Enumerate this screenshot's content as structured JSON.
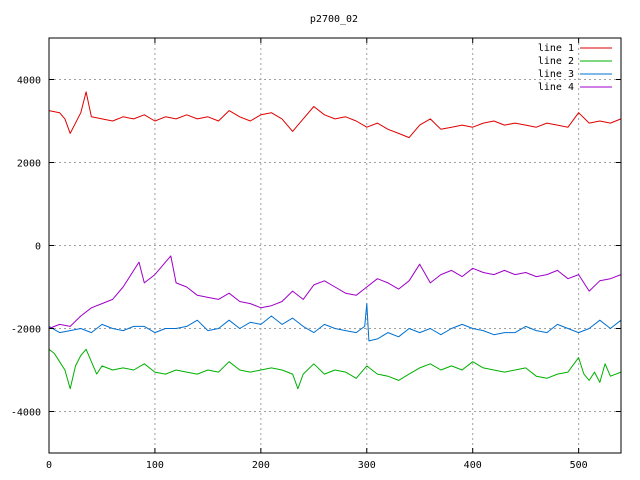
{
  "chart_data": {
    "type": "line",
    "title": "p2700_02",
    "xlabel": "",
    "ylabel": "",
    "xlim": [
      0,
      540
    ],
    "ylim": [
      -5000,
      5000
    ],
    "x_ticks": [
      0,
      100,
      200,
      300,
      400,
      500
    ],
    "y_ticks": [
      -4000,
      -2000,
      0,
      2000,
      4000
    ],
    "grid": true,
    "legend_position": "top-right",
    "series": [
      {
        "name": "line 1",
        "color": "#e00000",
        "x": [
          0,
          10,
          15,
          20,
          30,
          35,
          40,
          50,
          60,
          70,
          80,
          90,
          100,
          110,
          120,
          130,
          140,
          150,
          160,
          170,
          180,
          190,
          200,
          210,
          220,
          230,
          240,
          250,
          260,
          270,
          280,
          290,
          300,
          310,
          320,
          330,
          340,
          350,
          360,
          370,
          380,
          390,
          400,
          410,
          420,
          430,
          440,
          450,
          460,
          470,
          480,
          490,
          500,
          510,
          520,
          530,
          540
        ],
        "y": [
          3250,
          3200,
          3050,
          2700,
          3200,
          3700,
          3100,
          3050,
          3000,
          3100,
          3050,
          3150,
          3000,
          3100,
          3050,
          3150,
          3050,
          3100,
          3000,
          3250,
          3100,
          3000,
          3150,
          3200,
          3050,
          2750,
          3050,
          3350,
          3150,
          3050,
          3100,
          3000,
          2850,
          2950,
          2800,
          2700,
          2600,
          2900,
          3050,
          2800,
          2850,
          2900,
          2850,
          2950,
          3000,
          2900,
          2950,
          2900,
          2850,
          2950,
          2900,
          2850,
          3200,
          2950,
          3000,
          2950,
          3050
        ]
      },
      {
        "name": "line 2",
        "color": "#00b000",
        "x": [
          0,
          5,
          10,
          15,
          20,
          25,
          30,
          35,
          40,
          45,
          50,
          60,
          70,
          80,
          90,
          100,
          110,
          120,
          130,
          140,
          150,
          160,
          170,
          180,
          190,
          200,
          210,
          220,
          230,
          235,
          240,
          250,
          260,
          270,
          280,
          290,
          300,
          310,
          320,
          330,
          340,
          350,
          360,
          370,
          380,
          390,
          400,
          410,
          420,
          430,
          440,
          450,
          460,
          470,
          480,
          490,
          500,
          505,
          510,
          515,
          520,
          525,
          530,
          540
        ],
        "y": [
          -2500,
          -2600,
          -2800,
          -3000,
          -3450,
          -2900,
          -2650,
          -2500,
          -2800,
          -3100,
          -2900,
          -3000,
          -2950,
          -3000,
          -2850,
          -3050,
          -3100,
          -3000,
          -3050,
          -3100,
          -3000,
          -3050,
          -2800,
          -3000,
          -3050,
          -3000,
          -2950,
          -3000,
          -3100,
          -3450,
          -3100,
          -2850,
          -3100,
          -3000,
          -3050,
          -3200,
          -2900,
          -3100,
          -3150,
          -3250,
          -3100,
          -2950,
          -2850,
          -3000,
          -2900,
          -3000,
          -2800,
          -2950,
          -3000,
          -3050,
          -3000,
          -2950,
          -3150,
          -3200,
          -3100,
          -3050,
          -2700,
          -3100,
          -3250,
          -3050,
          -3300,
          -2850,
          -3150,
          -3050
        ]
      },
      {
        "name": "line 3",
        "color": "#0070d0",
        "x": [
          0,
          10,
          20,
          30,
          40,
          50,
          60,
          70,
          80,
          90,
          100,
          110,
          120,
          130,
          140,
          150,
          160,
          170,
          180,
          190,
          200,
          210,
          220,
          230,
          240,
          250,
          260,
          270,
          280,
          290,
          298,
          300,
          302,
          310,
          320,
          330,
          340,
          350,
          360,
          370,
          380,
          390,
          400,
          410,
          420,
          430,
          440,
          450,
          460,
          470,
          480,
          490,
          500,
          510,
          520,
          530,
          540
        ],
        "y": [
          -1950,
          -2100,
          -2050,
          -2000,
          -2100,
          -1900,
          -2000,
          -2050,
          -1950,
          -1950,
          -2100,
          -2000,
          -2000,
          -1950,
          -1800,
          -2050,
          -2000,
          -1800,
          -2000,
          -1850,
          -1900,
          -1700,
          -1900,
          -1750,
          -1950,
          -2100,
          -1900,
          -2000,
          -2050,
          -2100,
          -1950,
          -1400,
          -2300,
          -2250,
          -2100,
          -2200,
          -2000,
          -2100,
          -2000,
          -2150,
          -2000,
          -1900,
          -2000,
          -2050,
          -2150,
          -2100,
          -2100,
          -1950,
          -2050,
          -2100,
          -1900,
          -2000,
          -2100,
          -2000,
          -1800,
          -2000,
          -1800
        ]
      },
      {
        "name": "line 4",
        "color": "#a000c8",
        "x": [
          0,
          10,
          20,
          30,
          40,
          50,
          60,
          70,
          80,
          85,
          90,
          100,
          110,
          115,
          120,
          130,
          140,
          150,
          160,
          170,
          180,
          190,
          200,
          210,
          220,
          230,
          240,
          250,
          260,
          270,
          280,
          290,
          300,
          310,
          320,
          330,
          340,
          350,
          360,
          370,
          380,
          390,
          400,
          410,
          420,
          430,
          440,
          450,
          460,
          470,
          480,
          490,
          500,
          510,
          520,
          530,
          540
        ],
        "y": [
          -2000,
          -1900,
          -1950,
          -1700,
          -1500,
          -1400,
          -1300,
          -1000,
          -600,
          -400,
          -900,
          -700,
          -400,
          -250,
          -900,
          -1000,
          -1200,
          -1250,
          -1300,
          -1150,
          -1350,
          -1400,
          -1500,
          -1450,
          -1350,
          -1100,
          -1300,
          -950,
          -850,
          -1000,
          -1150,
          -1200,
          -1000,
          -800,
          -900,
          -1050,
          -850,
          -450,
          -900,
          -700,
          -600,
          -750,
          -550,
          -650,
          -700,
          -600,
          -700,
          -650,
          -750,
          -700,
          -600,
          -800,
          -700,
          -1100,
          -850,
          -800,
          -700
        ]
      }
    ]
  }
}
